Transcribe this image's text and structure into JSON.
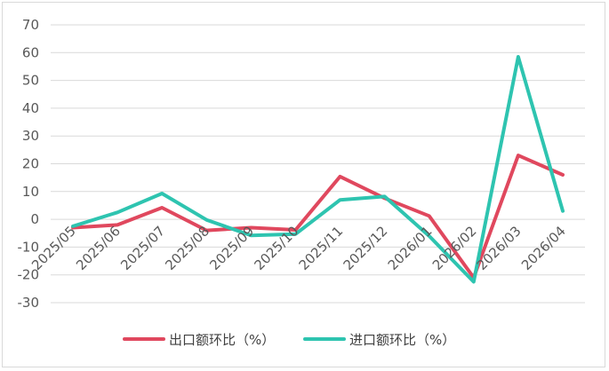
{
  "chart_data": {
    "type": "line",
    "title": "",
    "xlabel": "",
    "ylabel": "",
    "categories": [
      "2025/05",
      "2025/06",
      "2025/07",
      "2025/08",
      "2025/09",
      "2025/10",
      "2025/11",
      "2025/12",
      "2026/01",
      "2026/02",
      "2026/03",
      "2026/04"
    ],
    "ylim": [
      -30,
      70
    ],
    "yticks": [
      -30,
      -20,
      -10,
      0,
      10,
      20,
      30,
      40,
      50,
      60,
      70
    ],
    "grid": true,
    "legend_position": "bottom",
    "series": [
      {
        "name": "出口额环比（%）",
        "color": "#e0485e",
        "values": [
          -3.0,
          -2.0,
          4.2,
          -4.0,
          -3.0,
          -3.8,
          15.4,
          7.6,
          1.2,
          -21.0,
          23.0,
          16.0
        ]
      },
      {
        "name": "进口额环比（%）",
        "color": "#2ec4b0",
        "values": [
          -2.5,
          2.5,
          9.3,
          -0.2,
          -5.8,
          -5.3,
          7.0,
          8.2,
          -6.0,
          -22.5,
          58.5,
          3.0
        ]
      }
    ]
  }
}
